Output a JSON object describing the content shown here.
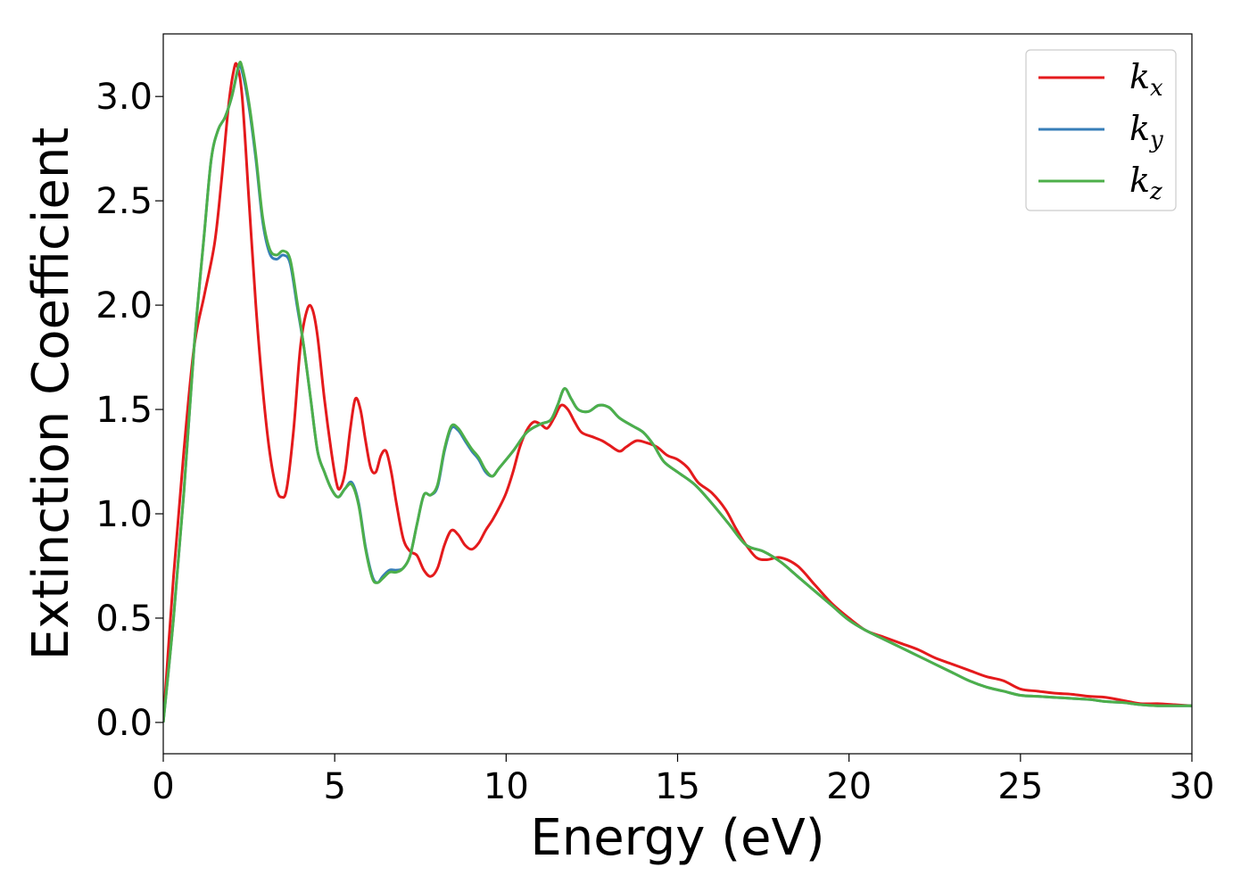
{
  "chart_data": {
    "type": "line",
    "title": "",
    "xlabel": "Energy (eV)",
    "ylabel": "Extinction Coefficient",
    "xlim": [
      0,
      30
    ],
    "ylim": [
      -0.15,
      3.3
    ],
    "xticks": [
      0,
      5,
      10,
      15,
      20,
      25,
      30
    ],
    "yticks": [
      0.0,
      0.5,
      1.0,
      1.5,
      2.0,
      2.5,
      3.0
    ],
    "xtick_labels": [
      "0",
      "5",
      "10",
      "15",
      "20",
      "25",
      "30"
    ],
    "ytick_labels": [
      "0.0",
      "0.5",
      "1.0",
      "1.5",
      "2.0",
      "2.5",
      "3.0"
    ],
    "grid": false,
    "legend_position": "top-right",
    "series": [
      {
        "name": "k_x",
        "legend_base": "k",
        "legend_sub": "x",
        "color": "#e41a1c",
        "points": [
          [
            0,
            0
          ],
          [
            0.3,
            0.7
          ],
          [
            0.6,
            1.3
          ],
          [
            0.9,
            1.8
          ],
          [
            1.2,
            2.05
          ],
          [
            1.5,
            2.3
          ],
          [
            1.7,
            2.6
          ],
          [
            1.9,
            2.95
          ],
          [
            2.05,
            3.12
          ],
          [
            2.15,
            3.15
          ],
          [
            2.3,
            3.0
          ],
          [
            2.5,
            2.5
          ],
          [
            2.7,
            2.0
          ],
          [
            2.9,
            1.6
          ],
          [
            3.1,
            1.3
          ],
          [
            3.3,
            1.12
          ],
          [
            3.45,
            1.08
          ],
          [
            3.6,
            1.12
          ],
          [
            3.8,
            1.4
          ],
          [
            4.0,
            1.8
          ],
          [
            4.2,
            1.98
          ],
          [
            4.35,
            1.98
          ],
          [
            4.5,
            1.85
          ],
          [
            4.7,
            1.55
          ],
          [
            4.9,
            1.3
          ],
          [
            5.05,
            1.15
          ],
          [
            5.15,
            1.12
          ],
          [
            5.3,
            1.2
          ],
          [
            5.45,
            1.4
          ],
          [
            5.6,
            1.55
          ],
          [
            5.75,
            1.5
          ],
          [
            5.9,
            1.35
          ],
          [
            6.05,
            1.22
          ],
          [
            6.2,
            1.2
          ],
          [
            6.35,
            1.28
          ],
          [
            6.5,
            1.3
          ],
          [
            6.65,
            1.2
          ],
          [
            6.8,
            1.05
          ],
          [
            7.0,
            0.88
          ],
          [
            7.2,
            0.82
          ],
          [
            7.4,
            0.8
          ],
          [
            7.6,
            0.73
          ],
          [
            7.8,
            0.7
          ],
          [
            8.0,
            0.74
          ],
          [
            8.2,
            0.85
          ],
          [
            8.4,
            0.92
          ],
          [
            8.6,
            0.9
          ],
          [
            8.8,
            0.85
          ],
          [
            9.0,
            0.83
          ],
          [
            9.2,
            0.86
          ],
          [
            9.4,
            0.92
          ],
          [
            9.6,
            0.97
          ],
          [
            9.8,
            1.03
          ],
          [
            10.0,
            1.1
          ],
          [
            10.2,
            1.2
          ],
          [
            10.4,
            1.32
          ],
          [
            10.6,
            1.4
          ],
          [
            10.8,
            1.44
          ],
          [
            11.0,
            1.43
          ],
          [
            11.2,
            1.41
          ],
          [
            11.4,
            1.46
          ],
          [
            11.6,
            1.52
          ],
          [
            11.8,
            1.5
          ],
          [
            12.0,
            1.44
          ],
          [
            12.2,
            1.39
          ],
          [
            12.5,
            1.37
          ],
          [
            12.8,
            1.35
          ],
          [
            13.0,
            1.33
          ],
          [
            13.3,
            1.3
          ],
          [
            13.5,
            1.32
          ],
          [
            13.8,
            1.35
          ],
          [
            14.1,
            1.34
          ],
          [
            14.4,
            1.32
          ],
          [
            14.7,
            1.28
          ],
          [
            15.0,
            1.26
          ],
          [
            15.3,
            1.22
          ],
          [
            15.6,
            1.15
          ],
          [
            16.0,
            1.1
          ],
          [
            16.4,
            1.02
          ],
          [
            16.7,
            0.93
          ],
          [
            17.0,
            0.85
          ],
          [
            17.3,
            0.79
          ],
          [
            17.6,
            0.78
          ],
          [
            18.0,
            0.79
          ],
          [
            18.5,
            0.75
          ],
          [
            19.0,
            0.66
          ],
          [
            19.5,
            0.57
          ],
          [
            20.0,
            0.5
          ],
          [
            20.5,
            0.44
          ],
          [
            21.0,
            0.41
          ],
          [
            21.5,
            0.38
          ],
          [
            22.0,
            0.35
          ],
          [
            22.5,
            0.31
          ],
          [
            23.0,
            0.28
          ],
          [
            23.5,
            0.25
          ],
          [
            24.0,
            0.22
          ],
          [
            24.5,
            0.2
          ],
          [
            25.0,
            0.16
          ],
          [
            25.5,
            0.15
          ],
          [
            26.0,
            0.14
          ],
          [
            26.5,
            0.135
          ],
          [
            27.0,
            0.125
          ],
          [
            27.5,
            0.12
          ],
          [
            28.0,
            0.105
          ],
          [
            28.5,
            0.09
          ],
          [
            29.0,
            0.09
          ],
          [
            29.5,
            0.085
          ],
          [
            30.0,
            0.08
          ]
        ]
      },
      {
        "name": "k_y",
        "legend_base": "k",
        "legend_sub": "y",
        "color": "#377eb8",
        "points": [
          [
            0,
            0
          ],
          [
            0.3,
            0.5
          ],
          [
            0.6,
            1.1
          ],
          [
            0.9,
            1.8
          ],
          [
            1.2,
            2.35
          ],
          [
            1.4,
            2.7
          ],
          [
            1.6,
            2.84
          ],
          [
            1.8,
            2.9
          ],
          [
            2.0,
            3.0
          ],
          [
            2.2,
            3.14
          ],
          [
            2.3,
            3.12
          ],
          [
            2.5,
            2.95
          ],
          [
            2.7,
            2.7
          ],
          [
            2.9,
            2.4
          ],
          [
            3.1,
            2.25
          ],
          [
            3.3,
            2.22
          ],
          [
            3.5,
            2.24
          ],
          [
            3.7,
            2.2
          ],
          [
            3.9,
            2.0
          ],
          [
            4.1,
            1.8
          ],
          [
            4.3,
            1.55
          ],
          [
            4.5,
            1.3
          ],
          [
            4.7,
            1.2
          ],
          [
            4.9,
            1.12
          ],
          [
            5.1,
            1.08
          ],
          [
            5.3,
            1.12
          ],
          [
            5.5,
            1.15
          ],
          [
            5.7,
            1.05
          ],
          [
            5.9,
            0.84
          ],
          [
            6.1,
            0.7
          ],
          [
            6.25,
            0.67
          ],
          [
            6.4,
            0.7
          ],
          [
            6.6,
            0.73
          ],
          [
            6.8,
            0.73
          ],
          [
            7.0,
            0.74
          ],
          [
            7.2,
            0.8
          ],
          [
            7.4,
            0.95
          ],
          [
            7.6,
            1.09
          ],
          [
            7.8,
            1.09
          ],
          [
            8.0,
            1.13
          ],
          [
            8.2,
            1.3
          ],
          [
            8.4,
            1.41
          ],
          [
            8.6,
            1.4
          ],
          [
            8.8,
            1.35
          ],
          [
            9.0,
            1.3
          ],
          [
            9.2,
            1.26
          ],
          [
            9.4,
            1.2
          ],
          [
            9.6,
            1.18
          ],
          [
            9.8,
            1.22
          ],
          [
            10.2,
            1.3
          ],
          [
            10.6,
            1.39
          ],
          [
            11.0,
            1.43
          ],
          [
            11.3,
            1.45
          ],
          [
            11.5,
            1.52
          ],
          [
            11.7,
            1.6
          ],
          [
            11.9,
            1.55
          ],
          [
            12.1,
            1.5
          ],
          [
            12.4,
            1.49
          ],
          [
            12.7,
            1.52
          ],
          [
            13.0,
            1.51
          ],
          [
            13.3,
            1.46
          ],
          [
            13.7,
            1.42
          ],
          [
            14.0,
            1.39
          ],
          [
            14.3,
            1.33
          ],
          [
            14.6,
            1.25
          ],
          [
            15.0,
            1.2
          ],
          [
            15.5,
            1.14
          ],
          [
            16.0,
            1.05
          ],
          [
            16.5,
            0.95
          ],
          [
            17.0,
            0.85
          ],
          [
            17.5,
            0.82
          ],
          [
            18.0,
            0.77
          ],
          [
            18.5,
            0.7
          ],
          [
            19.0,
            0.63
          ],
          [
            19.5,
            0.56
          ],
          [
            20.0,
            0.49
          ],
          [
            20.5,
            0.44
          ],
          [
            21.0,
            0.4
          ],
          [
            21.5,
            0.36
          ],
          [
            22.0,
            0.32
          ],
          [
            22.5,
            0.28
          ],
          [
            23.0,
            0.24
          ],
          [
            23.5,
            0.2
          ],
          [
            24.0,
            0.17
          ],
          [
            24.5,
            0.15
          ],
          [
            25.0,
            0.13
          ],
          [
            25.5,
            0.125
          ],
          [
            26.0,
            0.12
          ],
          [
            26.5,
            0.115
          ],
          [
            27.0,
            0.11
          ],
          [
            27.5,
            0.1
          ],
          [
            28.0,
            0.095
          ],
          [
            28.5,
            0.085
          ],
          [
            29.0,
            0.08
          ],
          [
            29.5,
            0.08
          ],
          [
            30.0,
            0.08
          ]
        ]
      },
      {
        "name": "k_z",
        "legend_base": "k",
        "legend_sub": "z",
        "color": "#4daf4a",
        "points": [
          [
            0,
            0
          ],
          [
            0.3,
            0.5
          ],
          [
            0.6,
            1.1
          ],
          [
            0.9,
            1.8
          ],
          [
            1.2,
            2.35
          ],
          [
            1.4,
            2.7
          ],
          [
            1.6,
            2.84
          ],
          [
            1.8,
            2.9
          ],
          [
            2.0,
            3.0
          ],
          [
            2.2,
            3.15
          ],
          [
            2.3,
            3.14
          ],
          [
            2.5,
            2.97
          ],
          [
            2.7,
            2.72
          ],
          [
            2.9,
            2.42
          ],
          [
            3.1,
            2.27
          ],
          [
            3.3,
            2.24
          ],
          [
            3.5,
            2.26
          ],
          [
            3.7,
            2.22
          ],
          [
            3.9,
            2.02
          ],
          [
            4.1,
            1.8
          ],
          [
            4.3,
            1.55
          ],
          [
            4.5,
            1.3
          ],
          [
            4.7,
            1.2
          ],
          [
            4.9,
            1.12
          ],
          [
            5.1,
            1.08
          ],
          [
            5.3,
            1.12
          ],
          [
            5.5,
            1.14
          ],
          [
            5.7,
            1.04
          ],
          [
            5.9,
            0.83
          ],
          [
            6.1,
            0.69
          ],
          [
            6.25,
            0.67
          ],
          [
            6.4,
            0.69
          ],
          [
            6.6,
            0.72
          ],
          [
            6.8,
            0.72
          ],
          [
            7.0,
            0.74
          ],
          [
            7.2,
            0.8
          ],
          [
            7.4,
            0.95
          ],
          [
            7.6,
            1.09
          ],
          [
            7.8,
            1.09
          ],
          [
            8.0,
            1.14
          ],
          [
            8.2,
            1.31
          ],
          [
            8.4,
            1.42
          ],
          [
            8.6,
            1.41
          ],
          [
            8.8,
            1.36
          ],
          [
            9.0,
            1.31
          ],
          [
            9.2,
            1.27
          ],
          [
            9.4,
            1.21
          ],
          [
            9.6,
            1.18
          ],
          [
            9.8,
            1.22
          ],
          [
            10.2,
            1.3
          ],
          [
            10.6,
            1.39
          ],
          [
            11.0,
            1.43
          ],
          [
            11.3,
            1.45
          ],
          [
            11.5,
            1.52
          ],
          [
            11.7,
            1.6
          ],
          [
            11.9,
            1.55
          ],
          [
            12.1,
            1.5
          ],
          [
            12.4,
            1.49
          ],
          [
            12.7,
            1.52
          ],
          [
            13.0,
            1.51
          ],
          [
            13.3,
            1.46
          ],
          [
            13.7,
            1.42
          ],
          [
            14.0,
            1.39
          ],
          [
            14.3,
            1.33
          ],
          [
            14.6,
            1.25
          ],
          [
            15.0,
            1.2
          ],
          [
            15.5,
            1.14
          ],
          [
            16.0,
            1.05
          ],
          [
            16.5,
            0.95
          ],
          [
            17.0,
            0.85
          ],
          [
            17.5,
            0.82
          ],
          [
            18.0,
            0.77
          ],
          [
            18.5,
            0.7
          ],
          [
            19.0,
            0.63
          ],
          [
            19.5,
            0.56
          ],
          [
            20.0,
            0.49
          ],
          [
            20.5,
            0.44
          ],
          [
            21.0,
            0.4
          ],
          [
            21.5,
            0.36
          ],
          [
            22.0,
            0.32
          ],
          [
            22.5,
            0.28
          ],
          [
            23.0,
            0.24
          ],
          [
            23.5,
            0.2
          ],
          [
            24.0,
            0.17
          ],
          [
            24.5,
            0.15
          ],
          [
            25.0,
            0.13
          ],
          [
            25.5,
            0.125
          ],
          [
            26.0,
            0.12
          ],
          [
            26.5,
            0.115
          ],
          [
            27.0,
            0.11
          ],
          [
            27.5,
            0.1
          ],
          [
            28.0,
            0.095
          ],
          [
            28.5,
            0.085
          ],
          [
            29.0,
            0.08
          ],
          [
            29.5,
            0.08
          ],
          [
            30.0,
            0.08
          ]
        ]
      }
    ]
  }
}
